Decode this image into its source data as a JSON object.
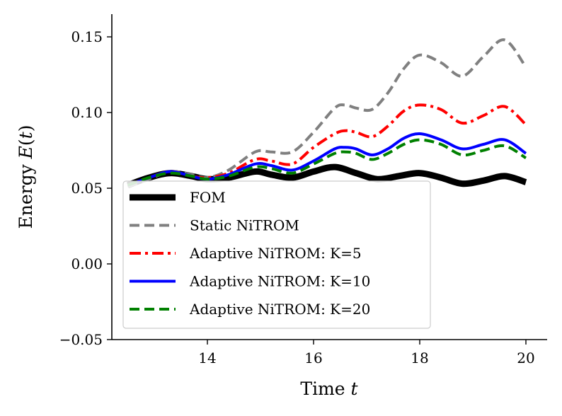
{
  "chart_data": {
    "type": "line",
    "xlabel": "Time t",
    "ylabel": "Energy E(t)",
    "xlim": [
      12.2,
      20.4
    ],
    "ylim": [
      -0.05,
      0.165
    ],
    "xticks": [
      14,
      16,
      18,
      20
    ],
    "xtick_labels": [
      "14",
      "16",
      "18",
      "20"
    ],
    "yticks": [
      -0.05,
      0.0,
      0.05,
      0.1,
      0.15
    ],
    "ytick_labels": [
      "−0.05",
      "0.00",
      "0.05",
      "0.10",
      "0.15"
    ],
    "grid": false,
    "legend_position": "lower-left",
    "series": [
      {
        "name": "FOM",
        "legend_label": "FOM",
        "color": "#000000",
        "style": "solid",
        "x": [
          12.5,
          12.9,
          13.3,
          13.7,
          14.0,
          14.4,
          14.9,
          15.2,
          15.6,
          16.0,
          16.4,
          16.8,
          17.2,
          17.6,
          18.0,
          18.4,
          18.8,
          19.2,
          19.6,
          20.0
        ],
        "y": [
          0.052,
          0.057,
          0.06,
          0.058,
          0.056,
          0.057,
          0.061,
          0.059,
          0.057,
          0.061,
          0.064,
          0.06,
          0.056,
          0.058,
          0.06,
          0.057,
          0.053,
          0.055,
          0.058,
          0.054
        ]
      },
      {
        "name": "Static NiTROM",
        "legend_label": "Static NiTROM",
        "color": "#808080",
        "style": "dashed",
        "x": [
          12.5,
          12.9,
          13.3,
          13.7,
          14.0,
          14.4,
          14.9,
          15.2,
          15.6,
          16.0,
          16.4,
          16.6,
          16.8,
          17.1,
          17.4,
          17.7,
          18.0,
          18.4,
          18.8,
          19.2,
          19.6,
          20.0
        ],
        "y": [
          0.051,
          0.056,
          0.061,
          0.059,
          0.057,
          0.062,
          0.074,
          0.074,
          0.074,
          0.087,
          0.103,
          0.105,
          0.103,
          0.102,
          0.113,
          0.129,
          0.138,
          0.133,
          0.124,
          0.137,
          0.148,
          0.13
        ]
      },
      {
        "name": "Adaptive NiTROM: K=5",
        "legend_label": "Adaptive NiTROM: K=5",
        "color": "#ff0000",
        "style": "dashdot",
        "x": [
          12.5,
          12.9,
          13.3,
          13.7,
          14.0,
          14.4,
          14.9,
          15.2,
          15.6,
          16.0,
          16.4,
          16.6,
          16.8,
          17.1,
          17.4,
          17.7,
          18.0,
          18.4,
          18.8,
          19.2,
          19.6,
          20.0
        ],
        "y": [
          0.052,
          0.057,
          0.061,
          0.058,
          0.057,
          0.06,
          0.069,
          0.068,
          0.066,
          0.077,
          0.086,
          0.088,
          0.087,
          0.084,
          0.091,
          0.101,
          0.105,
          0.102,
          0.093,
          0.098,
          0.104,
          0.092
        ]
      },
      {
        "name": "Adaptive NiTROM: K=10",
        "legend_label": "Adaptive NiTROM: K=10",
        "color": "#0000ff",
        "style": "solid",
        "x": [
          12.5,
          12.9,
          13.3,
          13.7,
          14.0,
          14.4,
          14.9,
          15.2,
          15.6,
          16.0,
          16.4,
          16.6,
          16.8,
          17.1,
          17.4,
          17.7,
          18.0,
          18.4,
          18.8,
          19.2,
          19.6,
          20.0
        ],
        "y": [
          0.052,
          0.057,
          0.061,
          0.058,
          0.056,
          0.059,
          0.066,
          0.065,
          0.062,
          0.068,
          0.076,
          0.077,
          0.076,
          0.072,
          0.076,
          0.083,
          0.086,
          0.082,
          0.076,
          0.079,
          0.082,
          0.073
        ]
      },
      {
        "name": "Adaptive NiTROM: K=20",
        "legend_label": "Adaptive NiTROM: K=20",
        "color": "#008000",
        "style": "dashed",
        "x": [
          12.5,
          12.9,
          13.3,
          13.7,
          14.0,
          14.4,
          14.9,
          15.2,
          15.6,
          16.0,
          16.4,
          16.6,
          16.8,
          17.1,
          17.4,
          17.7,
          18.0,
          18.4,
          18.8,
          19.2,
          19.6,
          20.0
        ],
        "y": [
          0.052,
          0.057,
          0.06,
          0.058,
          0.056,
          0.058,
          0.064,
          0.063,
          0.06,
          0.066,
          0.073,
          0.074,
          0.073,
          0.069,
          0.073,
          0.079,
          0.082,
          0.079,
          0.072,
          0.075,
          0.078,
          0.07
        ]
      }
    ]
  }
}
